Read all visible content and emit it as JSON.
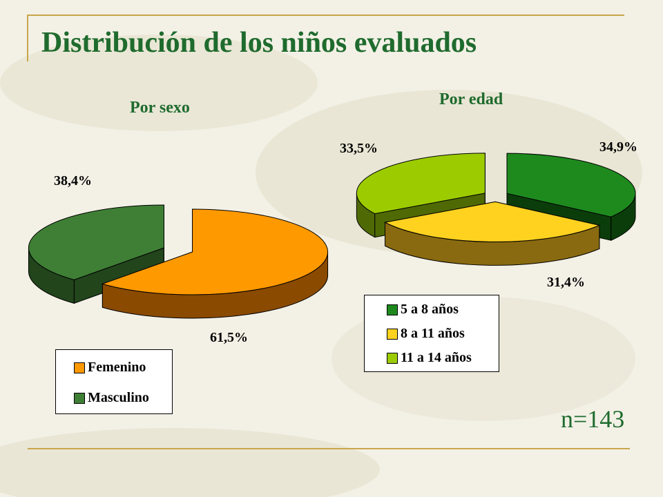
{
  "slide": {
    "title": "Distribución de los niños evaluados",
    "n_label": "n=143"
  },
  "colors": {
    "accent_line": "#c9a54a",
    "title": "#1f6b2e"
  },
  "chart_data": [
    {
      "type": "pie",
      "title": "Por sexo",
      "series": [
        {
          "name": "Femenino",
          "value": 61.5,
          "label": "61,5%",
          "color": "#ff9900",
          "side_color": "#8a4a00"
        },
        {
          "name": "Masculino",
          "value": 38.4,
          "label": "38,4%",
          "color": "#3f7f35",
          "side_color": "#22451c"
        }
      ],
      "exploded": true,
      "three_d": true,
      "legend_position": "bottom-left"
    },
    {
      "type": "pie",
      "title": "Por edad",
      "series": [
        {
          "name": "5 a 8 años",
          "value": 34.9,
          "label": "34,9%",
          "color": "#1e8a1e",
          "side_color": "#0b3d0b"
        },
        {
          "name": "8 a 11 años",
          "value": 31.4,
          "label": "31,4%",
          "color": "#ffd21f",
          "side_color": "#8a6a10"
        },
        {
          "name": "11 a 14 años",
          "value": 33.5,
          "label": "33,5%",
          "color": "#9ccc00",
          "side_color": "#4f6a05"
        }
      ],
      "exploded": true,
      "three_d": true,
      "legend_position": "bottom"
    }
  ]
}
